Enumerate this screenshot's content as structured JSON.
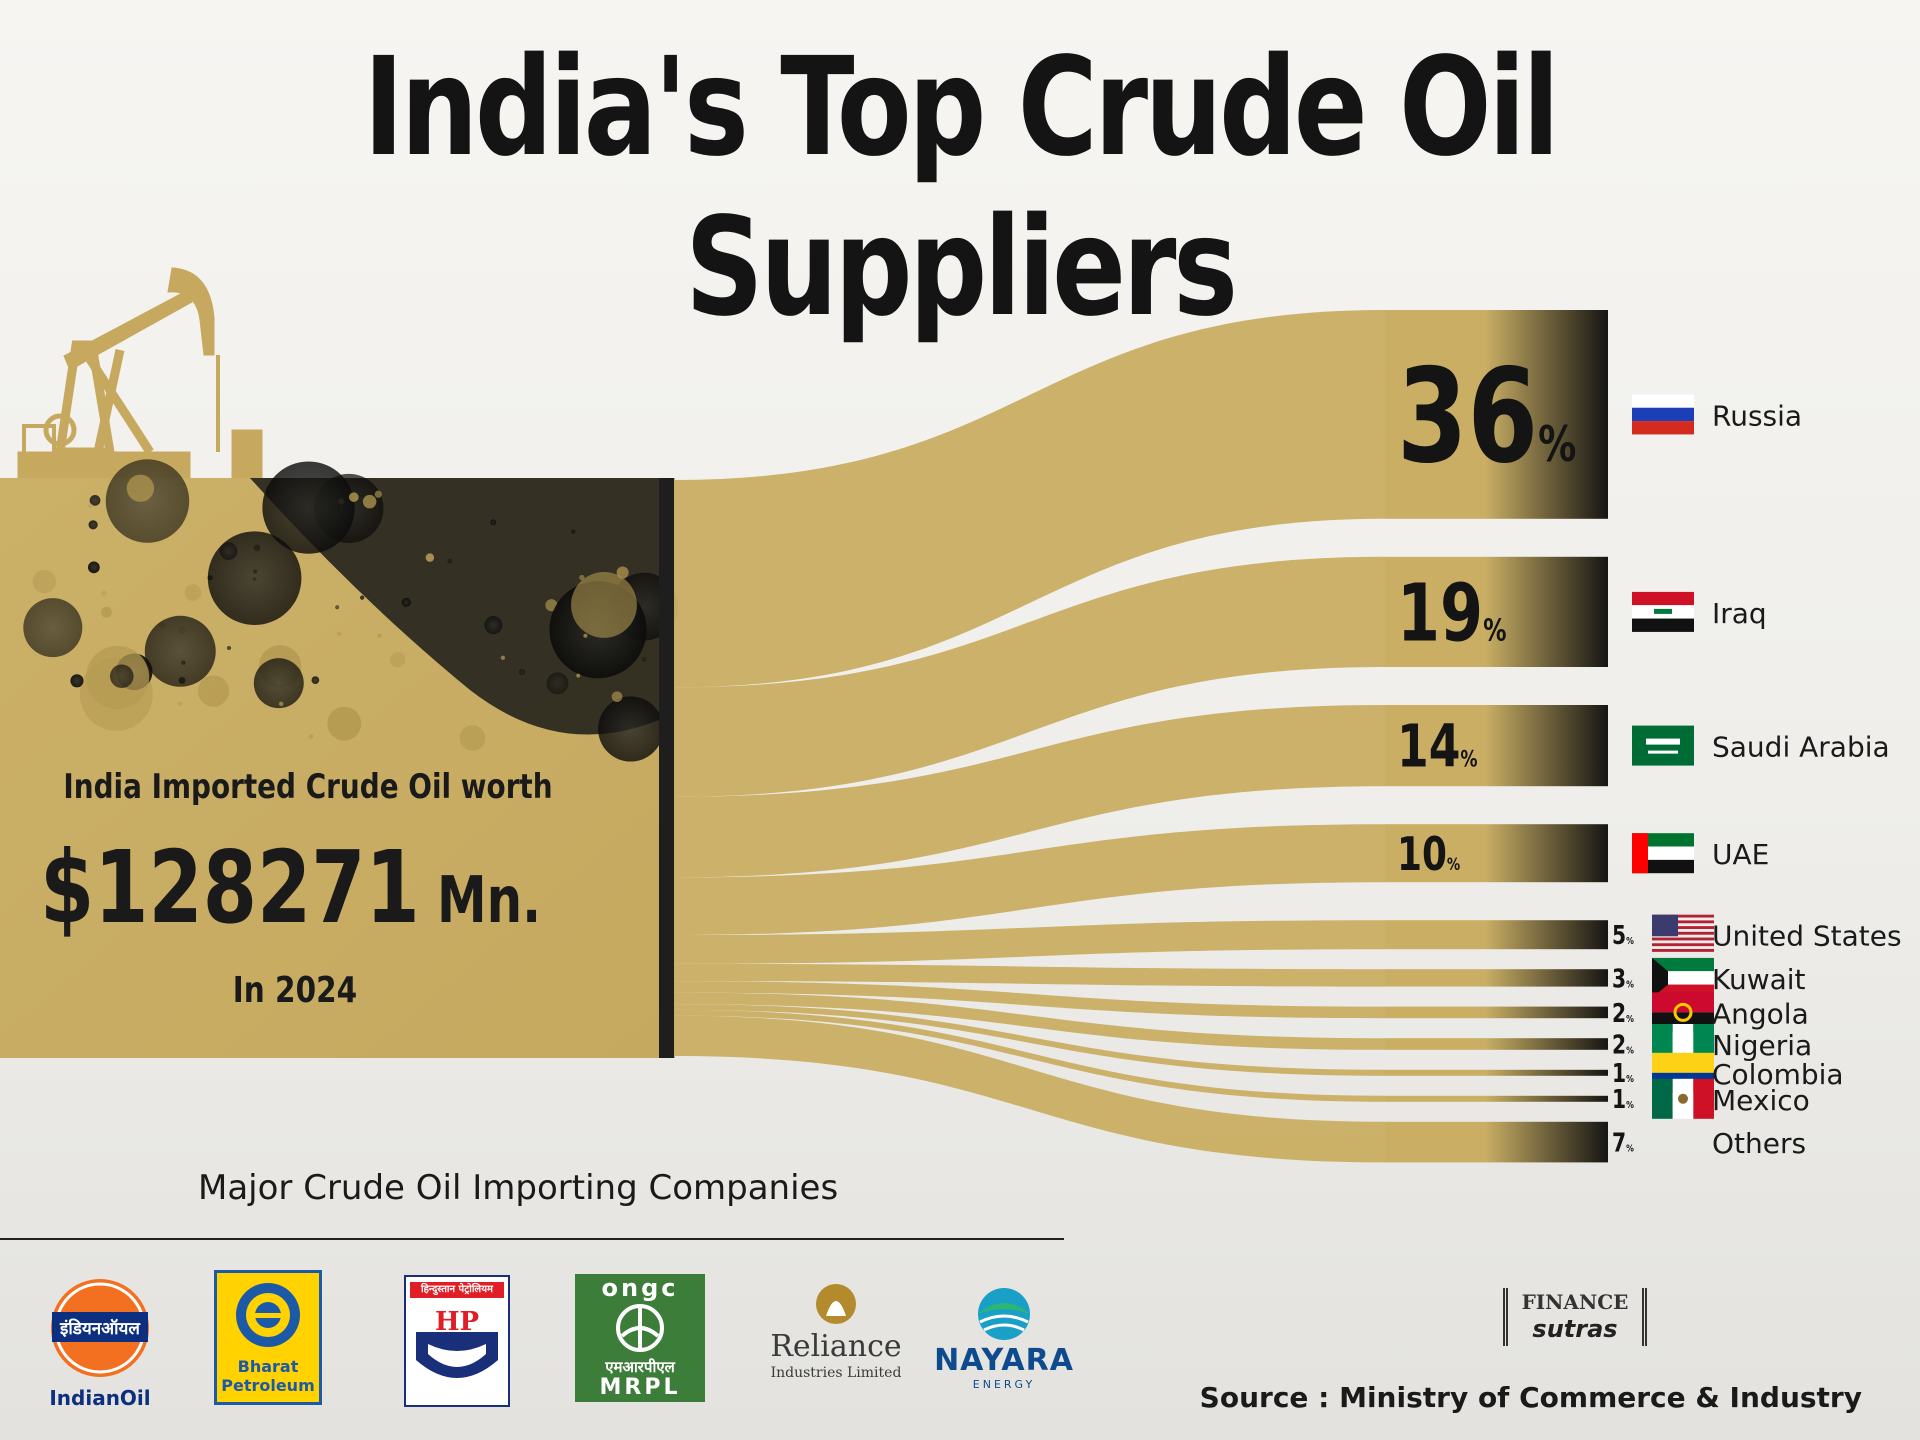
{
  "title": "India's Top Crude Oil Suppliers",
  "summary": {
    "label": "India Imported Crude Oil worth",
    "amount": "$128271",
    "unit": "Mn.",
    "period": "In 2024"
  },
  "chart_data": {
    "type": "sankey",
    "title": "India's Top Crude Oil Suppliers",
    "source_node": "India Imported Crude Oil worth $128271 Mn.",
    "value_unit": "%",
    "series": [
      {
        "name": "Russia",
        "value": 36
      },
      {
        "name": "Iraq",
        "value": 19
      },
      {
        "name": "Saudi Arabia",
        "value": 14
      },
      {
        "name": "UAE",
        "value": 10
      },
      {
        "name": "United States",
        "value": 5
      },
      {
        "name": "Kuwait",
        "value": 3
      },
      {
        "name": "Angola",
        "value": 2
      },
      {
        "name": "Nigeria",
        "value": 2
      },
      {
        "name": "Colombia",
        "value": 1
      },
      {
        "name": "Mexico",
        "value": 1
      },
      {
        "name": "Others",
        "value": 7
      }
    ]
  },
  "flags": {
    "Russia": [
      "#ffffff",
      "#1c3fb8",
      "#d52b1e"
    ],
    "Iraq": [
      "#ce1126",
      "#ffffff",
      "#111111"
    ],
    "Saudi Arabia": [
      "#006c35"
    ],
    "UAE": [
      "#00732f",
      "#ffffff",
      "#111111",
      "#ff0000"
    ],
    "United States": [
      "#b22234",
      "#ffffff",
      "#3c3b6e"
    ],
    "Kuwait": [
      "#007a3d",
      "#ffffff",
      "#ce1126",
      "#111111"
    ],
    "Angola": [
      "#cc092f",
      "#111111",
      "#ffcb00"
    ],
    "Nigeria": [
      "#008751",
      "#ffffff"
    ],
    "Colombia": [
      "#fcd116",
      "#003893",
      "#ce1126"
    ],
    "Mexico": [
      "#006847",
      "#ffffff",
      "#ce1126"
    ]
  },
  "colors": {
    "oil_gold": "#c9ae64",
    "oil_dark": "#141414",
    "bar": "#1e1e1e"
  },
  "companies_heading": "Major Crude Oil Importing Companies",
  "companies": [
    {
      "name": "IndianOil",
      "script": "इंडियनऑयल"
    },
    {
      "name": "Bharat Petroleum",
      "line1": "Bharat",
      "line2": "Petroleum"
    },
    {
      "name": "HP",
      "script": "हिन्दुस्तान पेट्रोलियम"
    },
    {
      "name": "ONGC MRPL",
      "top": "ongc",
      "script": "एमआरपीएल",
      "bottom": "MRPL"
    },
    {
      "name": "Reliance",
      "line1": "Reliance",
      "line2": "Industries Limited"
    },
    {
      "name": "NAYARA",
      "line1": "NAYARA",
      "line2": "ENERGY"
    }
  ],
  "brand": {
    "line1": "FINANCE",
    "line2": "sutras"
  },
  "source": "Source : Ministry of Commerce & Industry"
}
